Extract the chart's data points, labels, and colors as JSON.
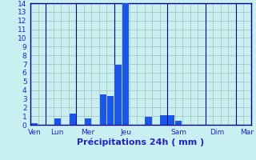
{
  "title": "Précipitations 24h ( mm )",
  "bar_color": "#1a56e8",
  "background_color": "#c8f0f0",
  "grid_color": "#9ab0b0",
  "axis_color": "#00008b",
  "text_color": "#2222cc",
  "ylim": [
    0,
    14
  ],
  "yticks": [
    0,
    1,
    2,
    3,
    4,
    5,
    6,
    7,
    8,
    9,
    10,
    11,
    12,
    13,
    14
  ],
  "bar_values": [
    0.2,
    0,
    0,
    0.7,
    0,
    1.3,
    0,
    0.7,
    0,
    3.5,
    3.3,
    6.9,
    14.0,
    0,
    0,
    0.9,
    0,
    1.1,
    1.1,
    0.5,
    0,
    0,
    0,
    0,
    0,
    0,
    0,
    0,
    0
  ],
  "n_bars": 29,
  "day_labels": [
    "Ven",
    "Lun",
    "Mer",
    "Jeu",
    "Sam",
    "Dim",
    "Mar"
  ],
  "day_tick_positions": [
    0,
    3,
    7,
    12,
    19,
    24,
    28
  ],
  "day_separator_x": [
    1.5,
    5.5,
    10.5,
    17.5,
    22.5,
    26.5
  ],
  "bar_width": 0.85,
  "xlabel_fontsize": 8,
  "tick_fontsize": 6.5
}
